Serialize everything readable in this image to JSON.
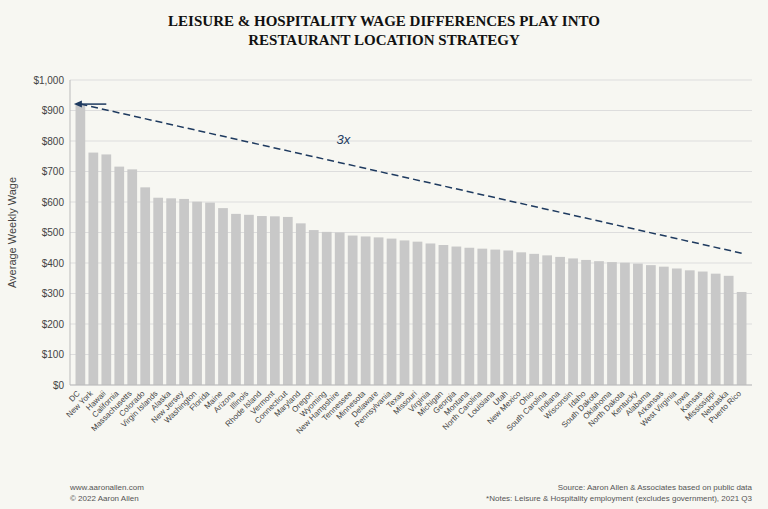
{
  "chart_data": {
    "type": "bar",
    "title": "LEISURE & HOSPITALITY WAGE DIFFERENCES PLAY INTO\nRESTAURANT LOCATION STRATEGY",
    "y_label": "Average Weekly Wage",
    "categories": [
      "DC",
      "New York",
      "Hawaii",
      "California",
      "Massachusetts",
      "Colorado",
      "Virgin Islands",
      "Alaska",
      "New Jersey",
      "Washington",
      "Florida",
      "Maine",
      "Arizona",
      "Illinois",
      "Rhode Island",
      "Vermont",
      "Connecticut",
      "Maryland",
      "Oregon",
      "Wyoming",
      "New Hampshire",
      "Tennessee",
      "Minnesota",
      "Delaware",
      "Pennsylvania",
      "Texas",
      "Missouri",
      "Virginia",
      "Michigan",
      "Georgia",
      "Montana",
      "North Carolina",
      "Louisiana",
      "Utah",
      "New Mexico",
      "Ohio",
      "South Carolina",
      "Indiana",
      "Wisconsin",
      "Idaho",
      "South Dakota",
      "Oklahoma",
      "North Dakota",
      "Kentucky",
      "Alabama",
      "Arkansas",
      "West Virginia",
      "Iowa",
      "Kansas",
      "Mississippi",
      "Nebraska",
      "Puerto Rico"
    ],
    "values": [
      921,
      762,
      756,
      716,
      707,
      648,
      614,
      612,
      610,
      601,
      598,
      580,
      561,
      558,
      554,
      553,
      551,
      530,
      508,
      502,
      500,
      490,
      487,
      484,
      480,
      474,
      470,
      464,
      459,
      454,
      450,
      447,
      444,
      441,
      435,
      430,
      425,
      420,
      415,
      410,
      406,
      403,
      401,
      398,
      393,
      388,
      382,
      376,
      372,
      365,
      358,
      305
    ],
    "color": "#c8c8c8",
    "trend_line": {
      "start": 921,
      "end": 432,
      "color": "#1e3a5f"
    },
    "annotation": "3x",
    "background": "#f7f7f2",
    "ylim": [
      0,
      1000
    ],
    "yticks": [
      {
        "value": 0,
        "label": "$0"
      },
      {
        "value": 100,
        "label": "$100"
      },
      {
        "value": 200,
        "label": "$200"
      },
      {
        "value": 300,
        "label": "$300"
      },
      {
        "value": 400,
        "label": "$400"
      },
      {
        "value": 500,
        "label": "$500"
      },
      {
        "value": 600,
        "label": "$600"
      },
      {
        "value": 700,
        "label": "$700"
      },
      {
        "value": 800,
        "label": "$800"
      },
      {
        "value": 900,
        "label": "$900"
      },
      {
        "value": 1000,
        "label": "$1,000"
      }
    ],
    "grid": true,
    "notes": [
      "www.aaronallen.com\n© 2022 Aaron Allen",
      "Source: Aaron Allen & Associates based on public data\n*Notes: Leisure & Hospitality employment (excludes government), 2021 Q3"
    ]
  }
}
